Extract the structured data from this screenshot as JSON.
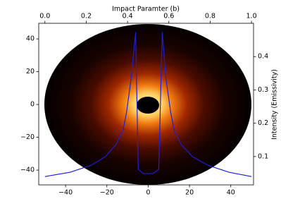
{
  "chart_data": {
    "type": "line",
    "x2label": "Impact Paramter (b)",
    "y2label": "Intensity (Emissivity)",
    "xlim": [
      -53,
      51
    ],
    "xticks": [
      {
        "value": -40,
        "label": "−40"
      },
      {
        "value": -20,
        "label": "−20"
      },
      0,
      20,
      40
    ],
    "ylim": [
      -49,
      49.5
    ],
    "yticks": [
      {
        "value": -40,
        "label": "−40"
      },
      {
        "value": -20,
        "label": "−20"
      },
      0,
      20,
      40
    ],
    "x2lim": [
      -0.03,
      1.01
    ],
    "x2ticks": [
      {
        "value": 0,
        "label": "0.0"
      },
      0.2,
      0.4,
      0.6,
      0.8,
      {
        "value": 1,
        "label": "1.0"
      }
    ],
    "y2lim": [
      0.015,
      0.5
    ],
    "y2ticks": [
      0.1,
      0.2,
      0.3,
      0.4
    ],
    "series": [
      {
        "color": "#1f1fd6",
        "axis": "y2",
        "x": [
          0,
          0.122,
          0.224,
          0.293,
          0.344,
          0.378,
          0.395,
          0.418,
          0.439,
          0.452,
          0.476,
          0.524,
          0.551,
          0.568,
          0.585,
          0.609,
          0.626,
          0.66,
          0.714,
          0.789,
          0.891,
          1.0
        ],
        "values": [
          0.04,
          0.053,
          0.074,
          0.1,
          0.136,
          0.179,
          0.232,
          0.338,
          0.472,
          0.062,
          0.049,
          0.049,
          0.062,
          0.472,
          0.338,
          0.232,
          0.179,
          0.136,
          0.1,
          0.074,
          0.053,
          0.04
        ]
      }
    ]
  }
}
